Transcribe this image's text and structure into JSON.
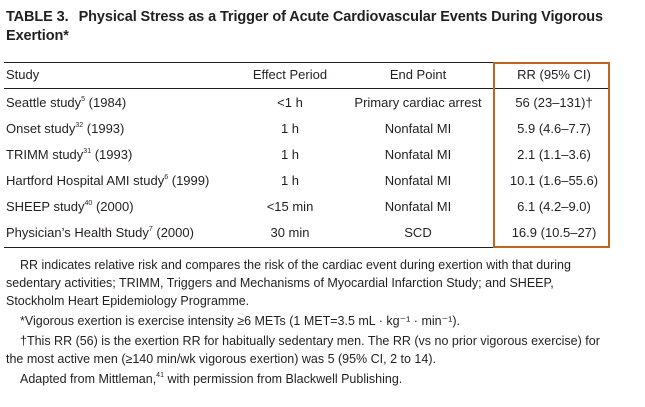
{
  "table": {
    "label": "TABLE 3.",
    "title": "Physical Stress as a Trigger of Acute Cardiovascular Events During Vigorous Exertion*",
    "columns": [
      "Study",
      "Effect Period",
      "End Point",
      "RR (95% CI)"
    ],
    "rows": [
      {
        "study": "Seattle study",
        "ref": "5",
        "year": " (1984)",
        "period": "<1 h",
        "end_point": "Primary cardiac arrest",
        "rr": "56 (23–131)†"
      },
      {
        "study": "Onset study",
        "ref": "32",
        "year": " (1993)",
        "period": "1 h",
        "end_point": "Nonfatal MI",
        "rr": "5.9 (4.6–7.7)"
      },
      {
        "study": "TRIMM study",
        "ref": "31",
        "year": " (1993)",
        "period": "1 h",
        "end_point": "Nonfatal MI",
        "rr": "2.1 (1.1–3.6)"
      },
      {
        "study": "Hartford Hospital AMI study",
        "ref": "6",
        "year": " (1999)",
        "period": "1 h",
        "end_point": "Nonfatal MI",
        "rr": "10.1 (1.6–55.6)"
      },
      {
        "study": "SHEEP study",
        "ref": "40",
        "year": " (2000)",
        "period": "<15 min",
        "end_point": "Nonfatal MI",
        "rr": "6.1 (4.2–9.0)"
      },
      {
        "study": "Physician’s Health Study",
        "ref": "7",
        "year": " (2000)",
        "period": "30 min",
        "end_point": "SCD",
        "rr": "16.9 (10.5–27)"
      }
    ]
  },
  "notes": {
    "abbrev": "RR indicates relative risk and compares the risk of the cardiac event during exertion with that during sedentary activities; TRIMM, Triggers and Mechanisms of Myocardial Infarction Study; and SHEEP, Stockholm Heart Epidemiology Programme.",
    "asterisk": "*Vigorous exertion is exercise intensity ≥6 METs (1 MET=3.5 mL · kg⁻¹ · min⁻¹).",
    "dagger": "†This RR (56) is the exertion RR for habitually sedentary men. The RR (vs no prior vigorous exercise) for the most active men (≥140 min/wk vigorous exertion) was 5 (95% CI, 2 to 14).",
    "adapted": "Adapted from Mittleman,",
    "adapted_ref": "41",
    "adapted_tail": " with permission from Blackwell Publishing."
  },
  "colors": {
    "text": "#231f20",
    "highlight_border": "#c0651e"
  }
}
